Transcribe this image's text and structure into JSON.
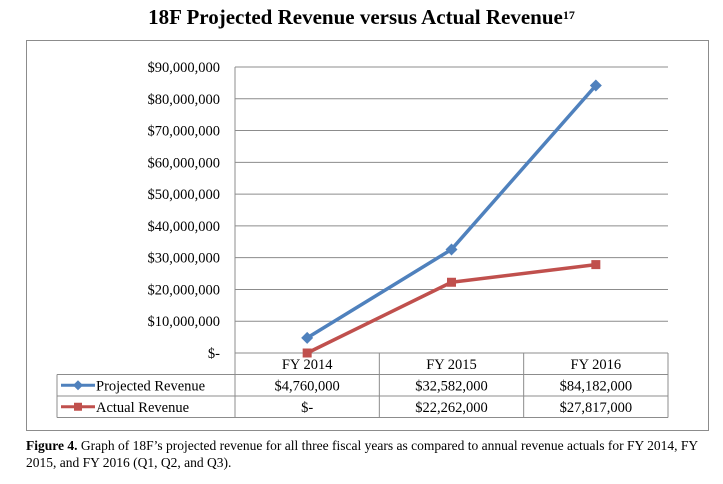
{
  "title": {
    "main": "18F Projected Revenue versus Actual Revenue",
    "footnote": "17"
  },
  "chart_data": {
    "type": "line",
    "categories": [
      "FY 2014",
      "FY 2015",
      "FY 2016"
    ],
    "ylim": [
      0,
      90000000
    ],
    "yticks": [
      {
        "value": 0,
        "label": "$-"
      },
      {
        "value": 10000000,
        "label": "$10,000,000"
      },
      {
        "value": 20000000,
        "label": "$20,000,000"
      },
      {
        "value": 30000000,
        "label": "$30,000,000"
      },
      {
        "value": 40000000,
        "label": "$40,000,000"
      },
      {
        "value": 50000000,
        "label": "$50,000,000"
      },
      {
        "value": 60000000,
        "label": "$60,000,000"
      },
      {
        "value": 70000000,
        "label": "$70,000,000"
      },
      {
        "value": 80000000,
        "label": "$80,000,000"
      },
      {
        "value": 90000000,
        "label": "$90,000,000"
      }
    ],
    "grid": true,
    "legend": "data-table",
    "series": [
      {
        "name": "Projected Revenue",
        "color": "#4f81bd",
        "marker": "diamond",
        "values": [
          4760000,
          32582000,
          84182000
        ],
        "labels": [
          "$4,760,000",
          "$32,582,000",
          "$84,182,000"
        ]
      },
      {
        "name": "Actual Revenue",
        "color": "#c0504d",
        "marker": "square",
        "values": [
          0,
          22262000,
          27817000
        ],
        "labels": [
          "$-",
          "$22,262,000",
          "$27,817,000"
        ]
      }
    ]
  },
  "caption": {
    "label": "Figure 4.",
    "text": "Graph of 18F’s projected revenue for all three fiscal years as compared to annual revenue actuals for FY 2014, FY 2015, and FY 2016 (Q1, Q2, and Q3)."
  }
}
